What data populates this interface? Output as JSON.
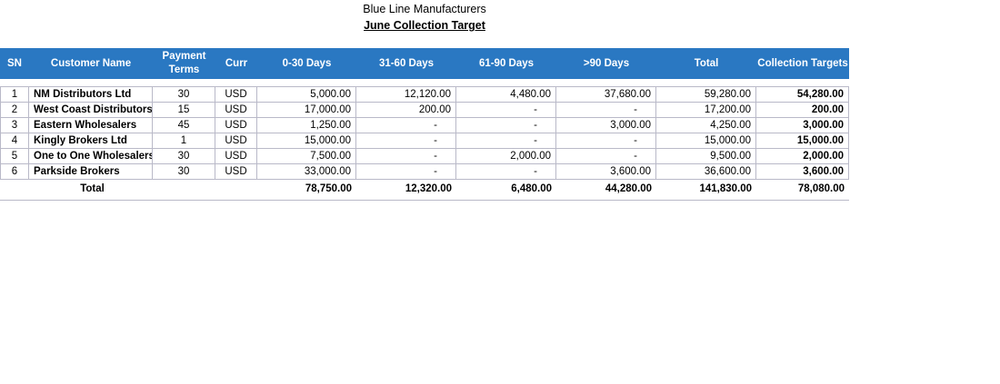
{
  "header": {
    "title": "Blue Line Manufacturers",
    "subtitle": "June Collection Target"
  },
  "table": {
    "columns": [
      "SN",
      "Customer Name",
      "Payment Terms",
      "Curr",
      "0-30 Days",
      "31-60 Days",
      "61-90 Days",
      ">90 Days",
      "Total",
      "Collection Targets"
    ],
    "rows": [
      [
        "1",
        "NM Distributors Ltd",
        "30",
        "USD",
        "5,000.00",
        "12,120.00",
        "4,480.00",
        "37,680.00",
        "59,280.00",
        "54,280.00"
      ],
      [
        "2",
        "West Coast Distributors",
        "15",
        "USD",
        "17,000.00",
        "200.00",
        "-",
        "-",
        "17,200.00",
        "200.00"
      ],
      [
        "3",
        "Eastern Wholesalers",
        "45",
        "USD",
        "1,250.00",
        "-",
        "-",
        "3,000.00",
        "4,250.00",
        "3,000.00"
      ],
      [
        "4",
        "Kingly Brokers Ltd",
        "1",
        "USD",
        "15,000.00",
        "-",
        "-",
        "-",
        "15,000.00",
        "15,000.00"
      ],
      [
        "5",
        "One to One Wholesalers",
        "30",
        "USD",
        "7,500.00",
        "-",
        "2,000.00",
        "-",
        "9,500.00",
        "2,000.00"
      ],
      [
        "6",
        "Parkside Brokers",
        "30",
        "USD",
        "33,000.00",
        "-",
        "-",
        "3,600.00",
        "36,600.00",
        "3,600.00"
      ]
    ],
    "total": {
      "label": "Total",
      "values": [
        "78,750.00",
        "12,320.00",
        "6,480.00",
        "44,280.00",
        "141,830.00",
        "78,080.00"
      ]
    }
  }
}
